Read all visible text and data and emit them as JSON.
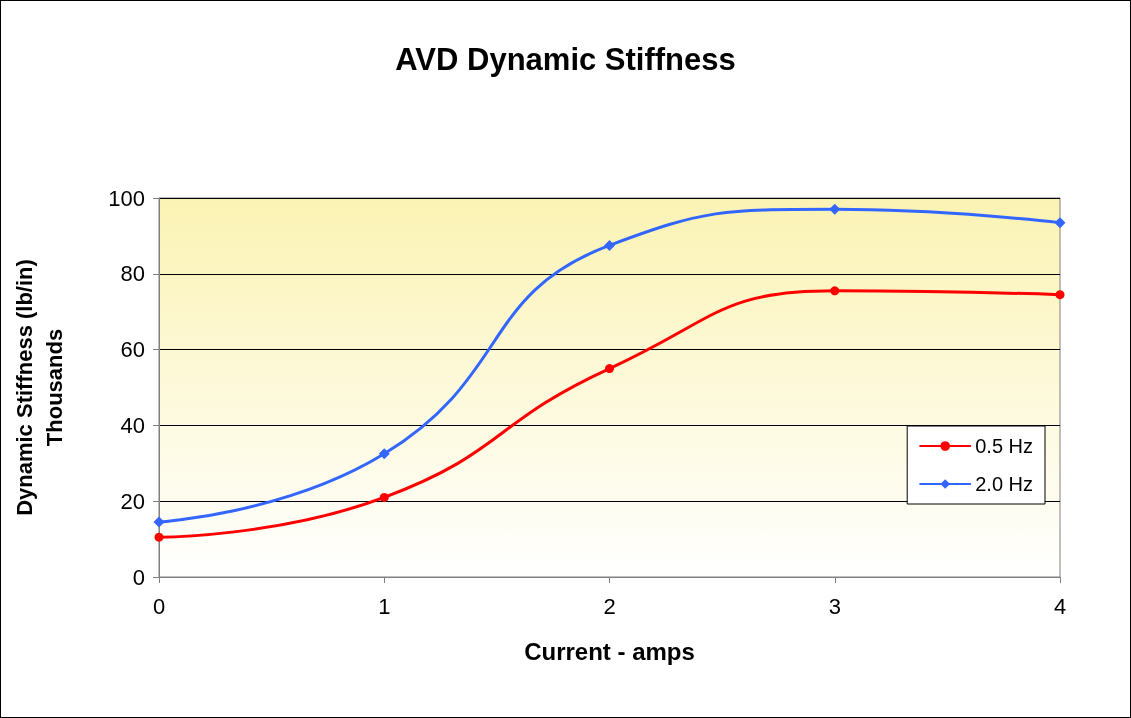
{
  "chart_data": {
    "type": "line",
    "title": "AVD Dynamic Stiffness",
    "xlabel": "Current - amps",
    "ylabel": "Dynamic Stiffness (lb/in)\nThousands",
    "x": [
      0,
      1,
      2,
      3,
      4
    ],
    "series": [
      {
        "name": "0.5 Hz",
        "color": "#ff0000",
        "marker": "circle",
        "values": [
          10.5,
          21,
          55,
          75.5,
          74.5
        ]
      },
      {
        "name": "2.0 Hz",
        "color": "#3366ff",
        "marker": "diamond",
        "values": [
          14.5,
          32.5,
          87.5,
          97,
          93.5
        ]
      }
    ],
    "xlim": [
      0,
      4
    ],
    "xticks": [
      0,
      1,
      2,
      3,
      4
    ],
    "ylim": [
      0,
      100
    ],
    "yticks": [
      0,
      20,
      40,
      60,
      80,
      100
    ],
    "grid": "y",
    "legend": "right",
    "line_style": "solid"
  }
}
